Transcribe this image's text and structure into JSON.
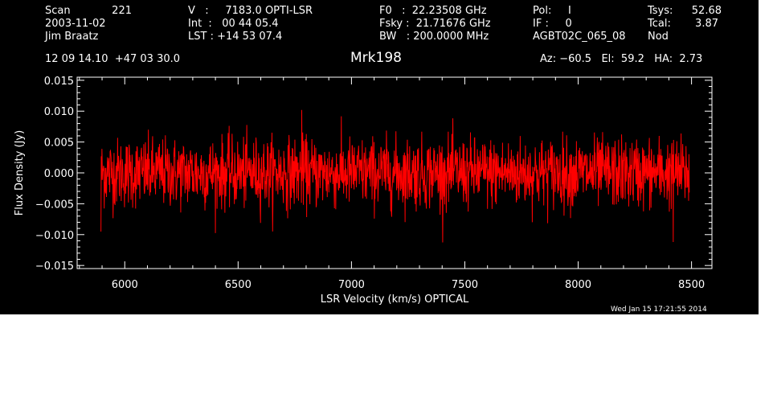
{
  "header": {
    "scan_label": "Scan",
    "scan_value": "221",
    "date": "2003-11-02",
    "observer": "Jim Braatz",
    "coords": "12 09 14.10  +47 03 30.0",
    "velocity": "V   :     7183.0 OPTI-LSR",
    "int_time": "Int  :   00 44 05.4",
    "lst": "LST : +14 53 07.4",
    "f0": "F0   :  22.23508 GHz",
    "fsky": "Fsky :  21.71676 GHz",
    "bw": "BW   : 200.0000 MHz",
    "pol": "Pol:     I",
    "if": "IF :     0",
    "project": "AGBT02C_065_08",
    "tsys_label": "Tsys:",
    "tsys_value": "52.68",
    "tcal_label": "Tcal:",
    "tcal_value": "3.87",
    "mode": "Nod",
    "az_el_ha": "Az: −60.5   El:  59.2   HA:  2.73"
  },
  "timestamp": "Wed Jan 15 17:21:55 2014",
  "chart_data": {
    "type": "line",
    "title": "Mrk198",
    "xlabel": "LSR Velocity (km/s) OPTICAL",
    "ylabel": "Flux Density (Jy)",
    "xlim": [
      5790,
      8590
    ],
    "ylim": [
      -0.0155,
      0.0155
    ],
    "xticks": [
      6000,
      6500,
      7000,
      7500,
      8000,
      8500
    ],
    "xtick_labels": [
      "6000",
      "6500",
      "7000",
      "7500",
      "8000",
      "8500"
    ],
    "yticks": [
      -0.015,
      -0.01,
      -0.005,
      0.0,
      0.005,
      0.01,
      0.015
    ],
    "ytick_labels": [
      "−0.015",
      "−0.010",
      "−0.005",
      "0.000",
      "0.005",
      "0.010",
      "0.015"
    ],
    "grid": false,
    "series": [
      {
        "color": "#ff0000",
        "x_range": [
          5895,
          8490
        ],
        "mean": 0.0,
        "rms": 0.0028,
        "min": -0.0115,
        "max": 0.0105,
        "note_points": [
          {
            "x": 5895,
            "y": -0.0095
          },
          {
            "x": 6780,
            "y": 0.0102
          },
          {
            "x": 8420,
            "y": -0.0112
          }
        ]
      }
    ]
  },
  "colors": {
    "background": "#000000",
    "axes": "#ffffff",
    "text": "#ffffff",
    "spectrum": "#ff0000"
  }
}
